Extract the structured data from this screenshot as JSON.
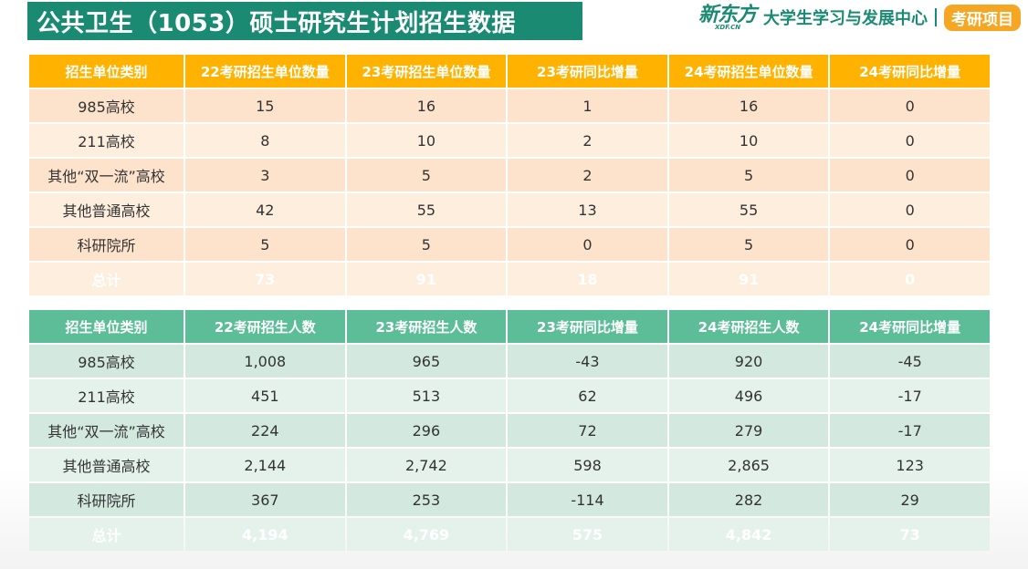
{
  "title": "公共卫生（1053）硕士研究生计划招生数据",
  "brand": {
    "logo_cn": "新东方",
    "logo_en": "XDF.CN",
    "center": "大学生学习与发展中心",
    "tag": "考研项目"
  },
  "table1": {
    "headers": [
      "招生单位类别",
      "22考研招生单位数量",
      "23考研招生单位数量",
      "23考研同比增量",
      "24考研招生单位数量",
      "24考研同比增量"
    ],
    "rows": [
      [
        "985高校",
        "15",
        "16",
        "1",
        "16",
        "0"
      ],
      [
        "211高校",
        "8",
        "10",
        "2",
        "10",
        "0"
      ],
      [
        "其他“双一流”高校",
        "3",
        "5",
        "2",
        "5",
        "0"
      ],
      [
        "其他普通高校",
        "42",
        "55",
        "13",
        "55",
        "0"
      ],
      [
        "科研院所",
        "5",
        "5",
        "0",
        "5",
        "0"
      ]
    ],
    "total": [
      "总计",
      "73",
      "91",
      "18",
      "91",
      "0"
    ]
  },
  "table2": {
    "headers": [
      "招生单位类别",
      "22考研招生人数",
      "23考研招生人数",
      "23考研同比增量",
      "24考研招生人数",
      "24考研同比增量"
    ],
    "rows": [
      [
        "985高校",
        "1,008",
        "965",
        "-43",
        "920",
        "-45"
      ],
      [
        "211高校",
        "451",
        "513",
        "62",
        "496",
        "-17"
      ],
      [
        "其他“双一流”高校",
        "224",
        "296",
        "72",
        "279",
        "-17"
      ],
      [
        "其他普通高校",
        "2,144",
        "2,742",
        "598",
        "2,865",
        "123"
      ],
      [
        "科研院所",
        "367",
        "253",
        "-114",
        "282",
        "29"
      ]
    ],
    "total": [
      "总计",
      "4,194",
      "4,769",
      "575",
      "4,842",
      "73"
    ]
  },
  "colors": {
    "title_bg": "#1a8a73",
    "table1_header": "#ffb300",
    "table2_header": "#5dbd99",
    "brand_tag": "#f5a623"
  }
}
